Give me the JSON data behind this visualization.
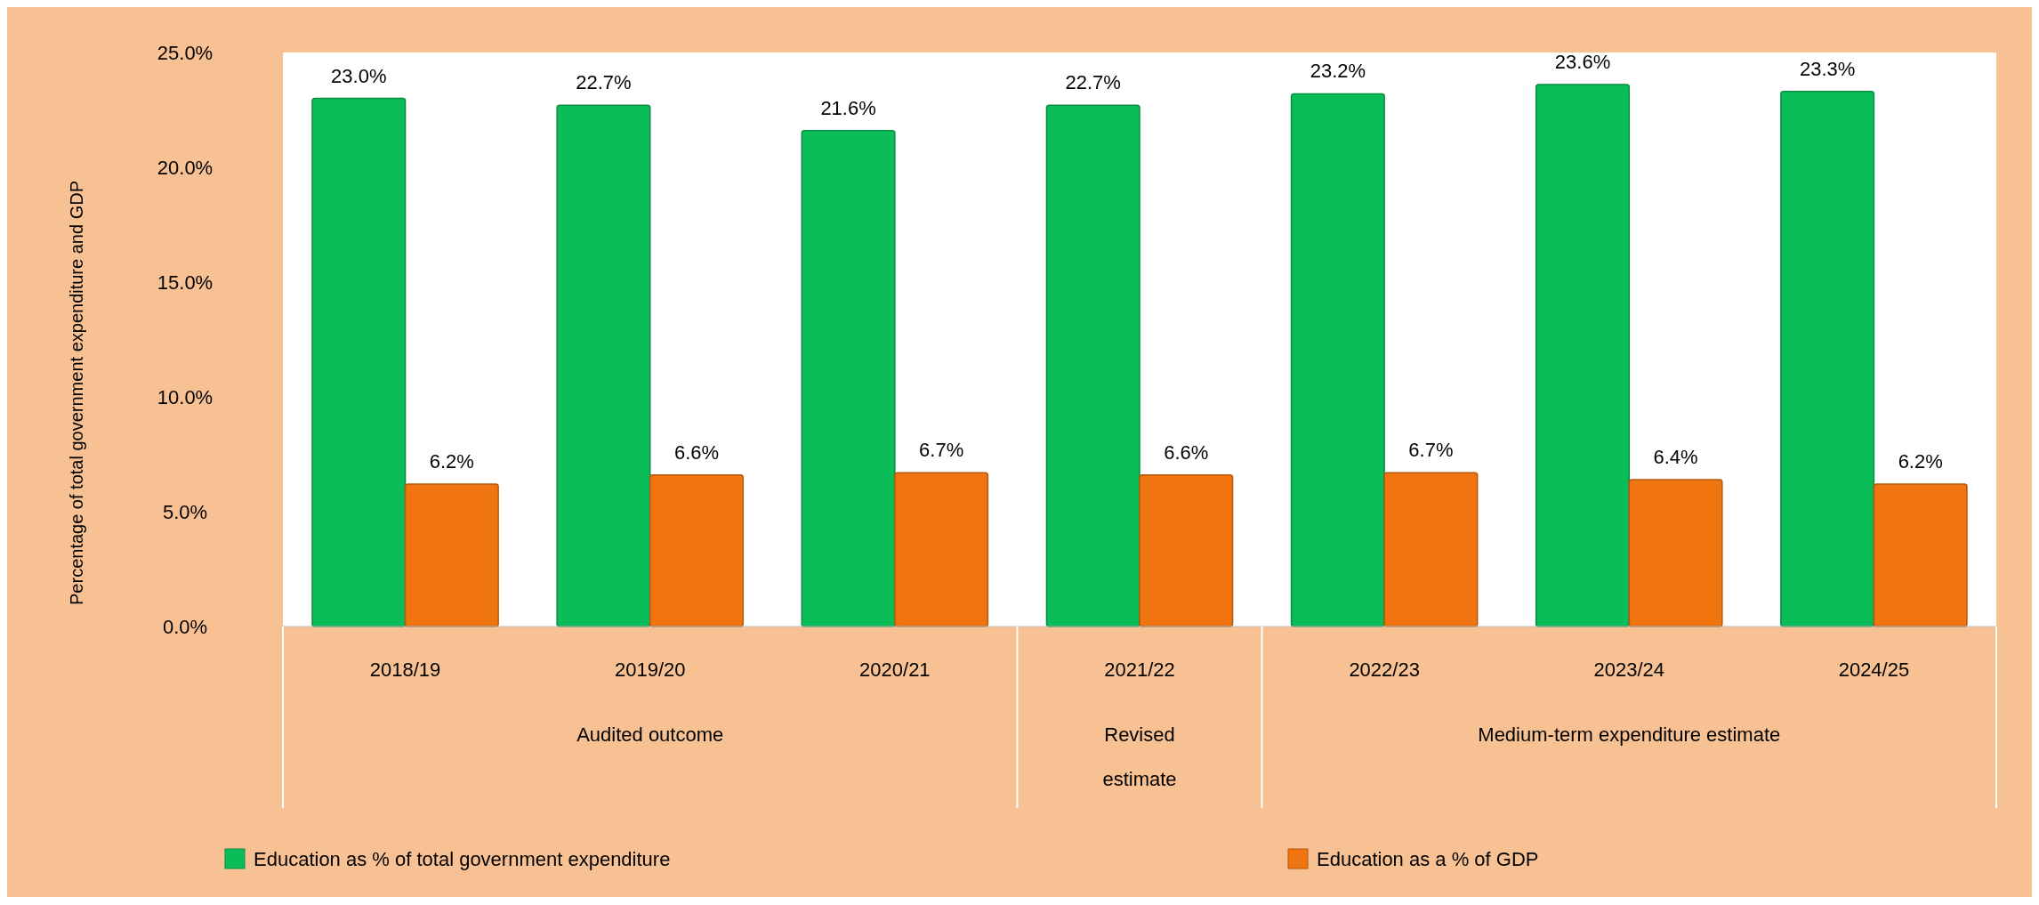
{
  "chart_data": {
    "type": "bar",
    "ylabel": "Percentage of total government expenditure and GDP",
    "categories": [
      "2018/19",
      "2019/20",
      "2020/21",
      "2021/22",
      "2022/23",
      "2023/24",
      "2024/25"
    ],
    "series": [
      {
        "name": "Education as % of total government expenditure",
        "color": "#0bbd58",
        "values": [
          23.0,
          22.7,
          21.6,
          22.7,
          23.2,
          23.6,
          23.3
        ],
        "value_labels": [
          "23.0%",
          "22.7%",
          "21.6%",
          "22.7%",
          "23.2%",
          "23.6%",
          "23.3%"
        ]
      },
      {
        "name": "Education as a % of GDP",
        "color": "#f07511",
        "values": [
          6.2,
          6.6,
          6.7,
          6.6,
          6.7,
          6.4,
          6.2
        ],
        "value_labels": [
          "6.2%",
          "6.6%",
          "6.7%",
          "6.6%",
          "6.7%",
          "6.4%",
          "6.2%"
        ]
      }
    ],
    "ylim": [
      0,
      25
    ],
    "yticks": [
      {
        "value": 0,
        "label": "0.0%"
      },
      {
        "value": 5,
        "label": "5.0%"
      },
      {
        "value": 10,
        "label": "10.0%"
      },
      {
        "value": 15,
        "label": "15.0%"
      },
      {
        "value": 20,
        "label": "20.0%"
      },
      {
        "value": 25,
        "label": "25.0%"
      }
    ],
    "annotations": [
      "Audited outcome",
      "Revised estimate",
      "Medium-term expenditure estimate"
    ],
    "grid": false,
    "legend": "bottom"
  }
}
